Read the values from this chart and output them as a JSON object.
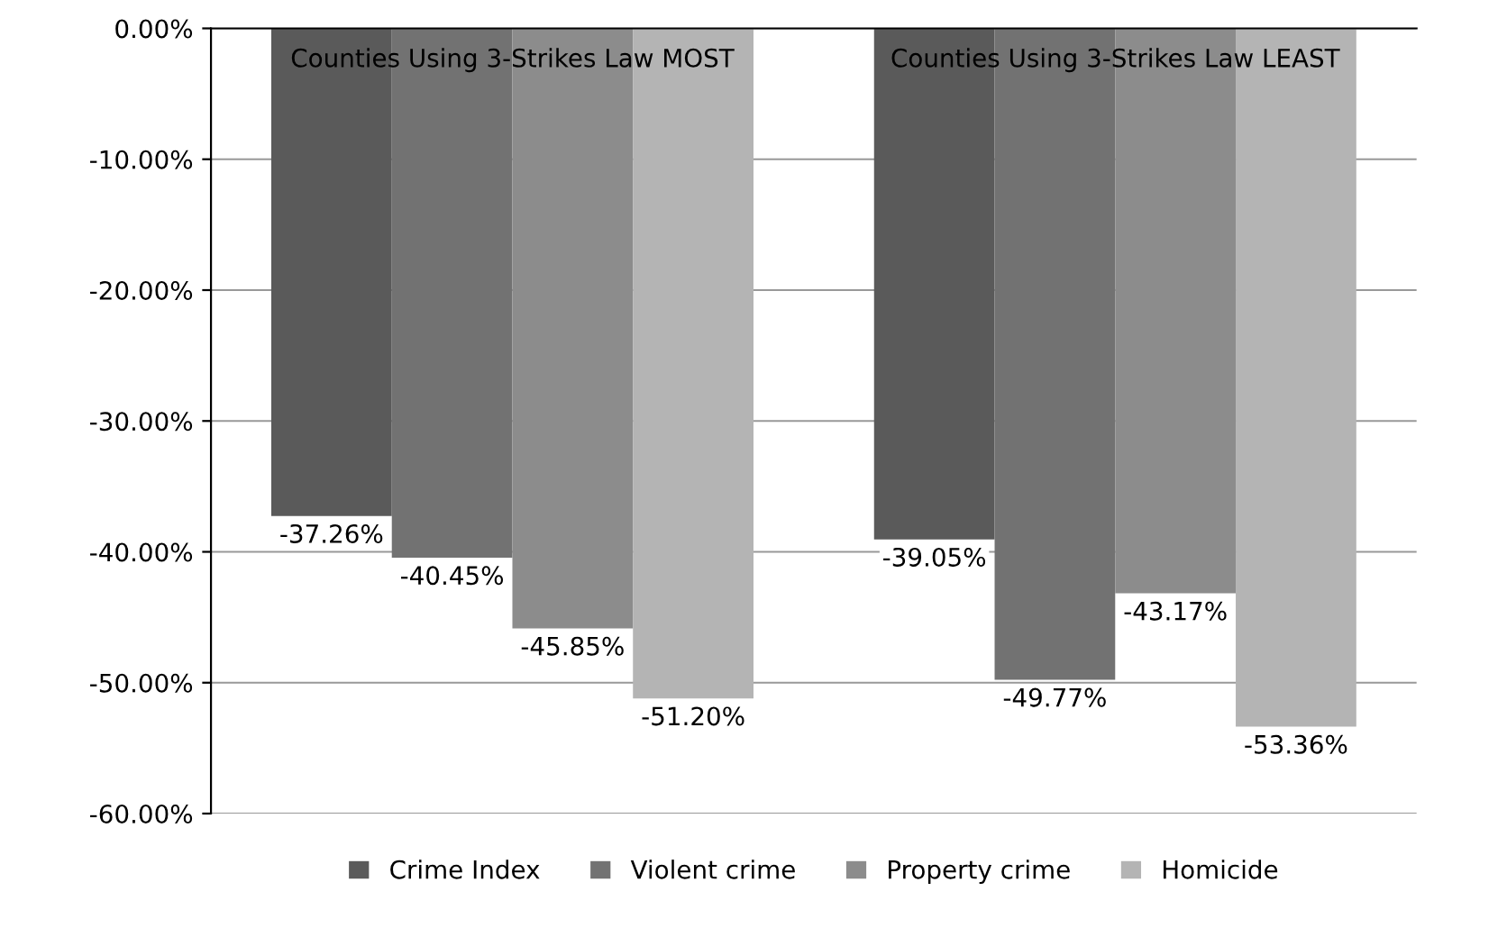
{
  "chart_data": {
    "type": "bar",
    "categories": [
      "Counties Using 3-Strikes Law MOST",
      "Counties Using 3-Strikes Law LEAST"
    ],
    "series": [
      {
        "name": "Crime Index",
        "color": "#5a5a5a",
        "values": [
          -37.26,
          -39.05
        ],
        "value_labels": [
          "-37.26%",
          "-39.05%"
        ]
      },
      {
        "name": "Violent crime",
        "color": "#727272",
        "values": [
          -40.45,
          -49.77
        ],
        "value_labels": [
          "-40.45%",
          "-49.77%"
        ]
      },
      {
        "name": "Property crime",
        "color": "#8c8c8c",
        "values": [
          -45.85,
          -43.17
        ],
        "value_labels": [
          "-45.85%",
          "-43.17%"
        ]
      },
      {
        "name": "Homicide",
        "color": "#b4b4b4",
        "values": [
          -51.2,
          -53.36
        ],
        "value_labels": [
          "-51.20%",
          "-53.36%"
        ]
      }
    ],
    "ylim": [
      -60,
      0
    ],
    "yticks": [
      {
        "value": 0,
        "label": "0.00%"
      },
      {
        "value": -10,
        "label": "-10.00%"
      },
      {
        "value": -20,
        "label": "-20.00%"
      },
      {
        "value": -30,
        "label": "-30.00%"
      },
      {
        "value": -40,
        "label": "-40.00%"
      },
      {
        "value": -50,
        "label": "-50.00%"
      },
      {
        "value": -60,
        "label": "-60.00%"
      }
    ],
    "grid": "y",
    "legend": "bottom"
  }
}
